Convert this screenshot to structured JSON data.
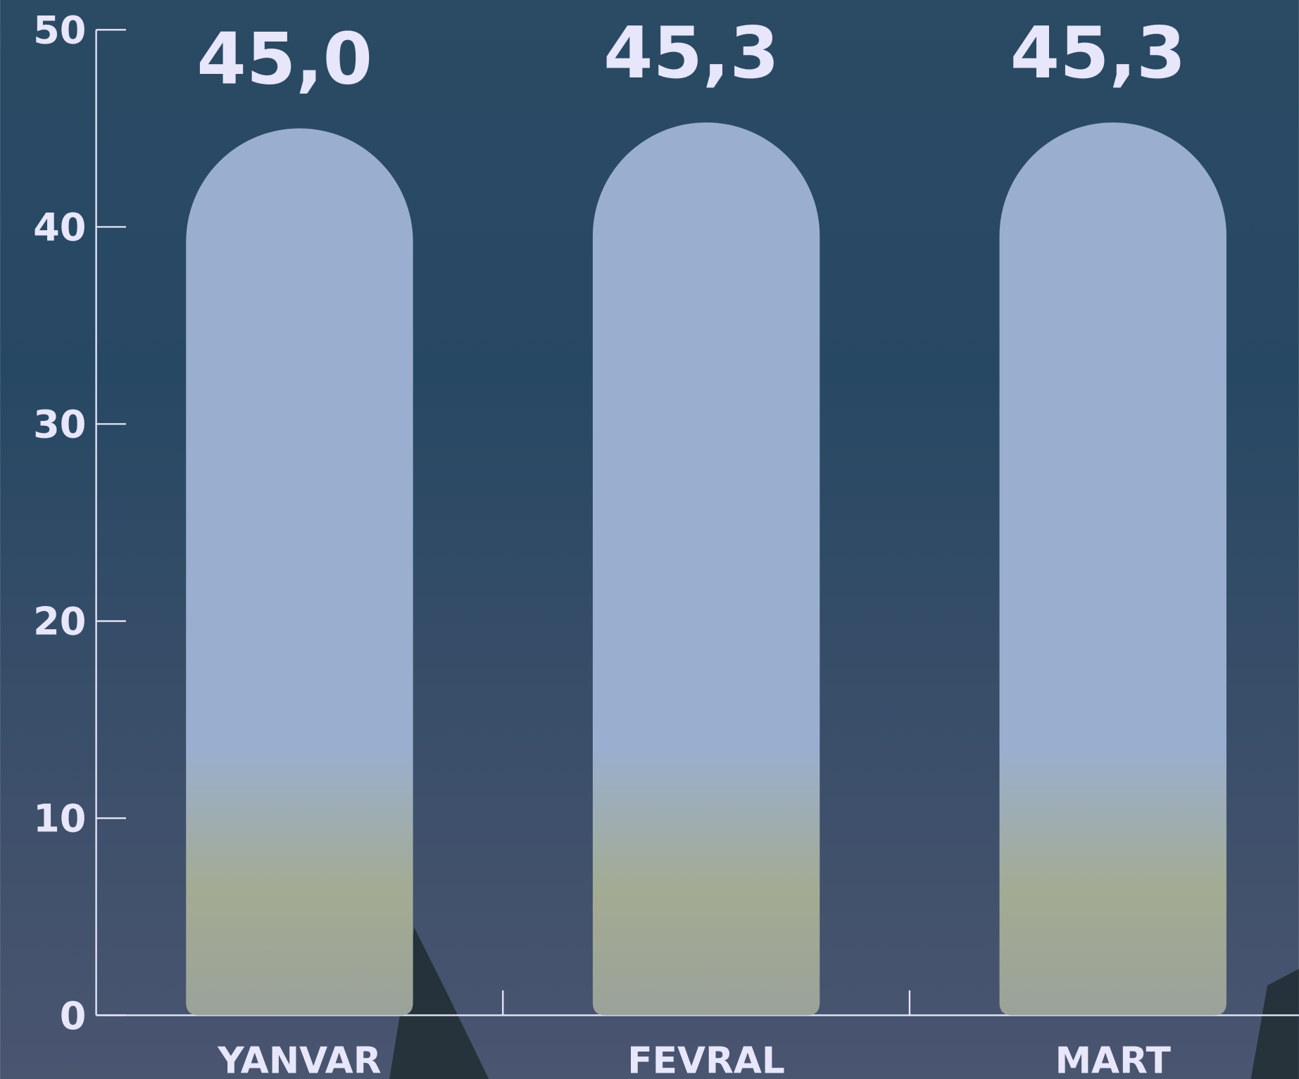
{
  "chart_data": {
    "type": "bar",
    "categories": [
      "YANVAR",
      "FEVRAL",
      "MART"
    ],
    "values": [
      45.0,
      45.3,
      45.3
    ],
    "value_labels": [
      "45,0",
      "45,3",
      "45,3"
    ],
    "color": "#9aafcf",
    "ylim": [
      0,
      50
    ],
    "yticks": [
      0,
      10,
      20,
      30,
      40,
      50
    ]
  }
}
